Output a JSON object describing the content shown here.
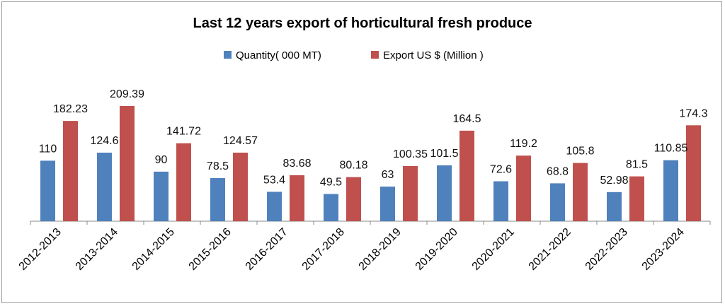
{
  "chart_data": {
    "type": "bar",
    "title": "Last 12 years export  of horticultural fresh produce",
    "xlabel": "",
    "ylabel": "",
    "categories": [
      "2012-2013",
      "2013-2014",
      "2014-2015",
      "2015-2016",
      "2016-2017",
      "2017-2018",
      "2018-2019",
      "2019-2020",
      "2020-2021",
      "2021-2022",
      "2022-2023",
      "2023-2024"
    ],
    "series": [
      {
        "name": "Quantity( 000 MT)",
        "color": "#4f81bd",
        "values": [
          110,
          124.6,
          90,
          78.5,
          53.4,
          49.5,
          63,
          101.5,
          72.6,
          68.8,
          52.98,
          110.85
        ],
        "labels": [
          "110",
          "124.6",
          "90",
          "78.5",
          "53.4",
          "49.5",
          "63",
          "101.5",
          "72.6",
          "68.8",
          "52.98",
          "110.85"
        ]
      },
      {
        "name": "Export  US $ (Million )",
        "color": "#c0504d",
        "values": [
          182.23,
          209.39,
          141.72,
          124.57,
          83.68,
          80.18,
          100.35,
          164.5,
          119.2,
          105.8,
          81.5,
          174.3
        ],
        "labels": [
          "182.23",
          "209.39",
          "141.72",
          "124.57",
          "83.68",
          "80.18",
          "100.35",
          "164.5",
          "119.2",
          "105.8",
          "81.5",
          "174.3"
        ]
      }
    ],
    "ylim": [
      0,
      220
    ],
    "grid": false,
    "legend_position": "top"
  }
}
